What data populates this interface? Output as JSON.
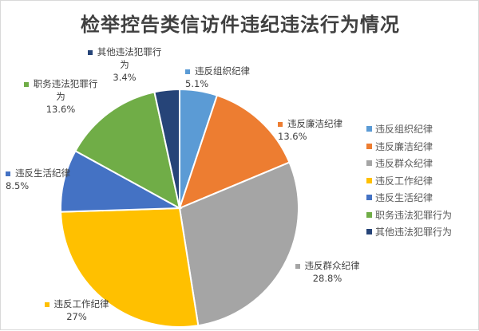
{
  "chart_data": {
    "type": "pie",
    "title": "检举控告类信访件违纪违法行为情况",
    "categories": [
      "违反组织纪律",
      "违反廉洁纪律",
      "违反群众纪律",
      "违反工作纪律",
      "违反生活纪律",
      "职务违法犯罪行为",
      "其他违法犯罪行为"
    ],
    "values": [
      5.1,
      13.6,
      28.8,
      27,
      8.5,
      13.6,
      3.4
    ],
    "value_labels": [
      "5.1%",
      "13.6%",
      "28.8%",
      "27%",
      "8.5%",
      "13.6%",
      "3.4%"
    ],
    "colors": [
      "#5b9bd5",
      "#ed7d31",
      "#a5a5a5",
      "#ffc000",
      "#4472c4",
      "#70ad47",
      "#264478"
    ],
    "legend_position": "right"
  }
}
